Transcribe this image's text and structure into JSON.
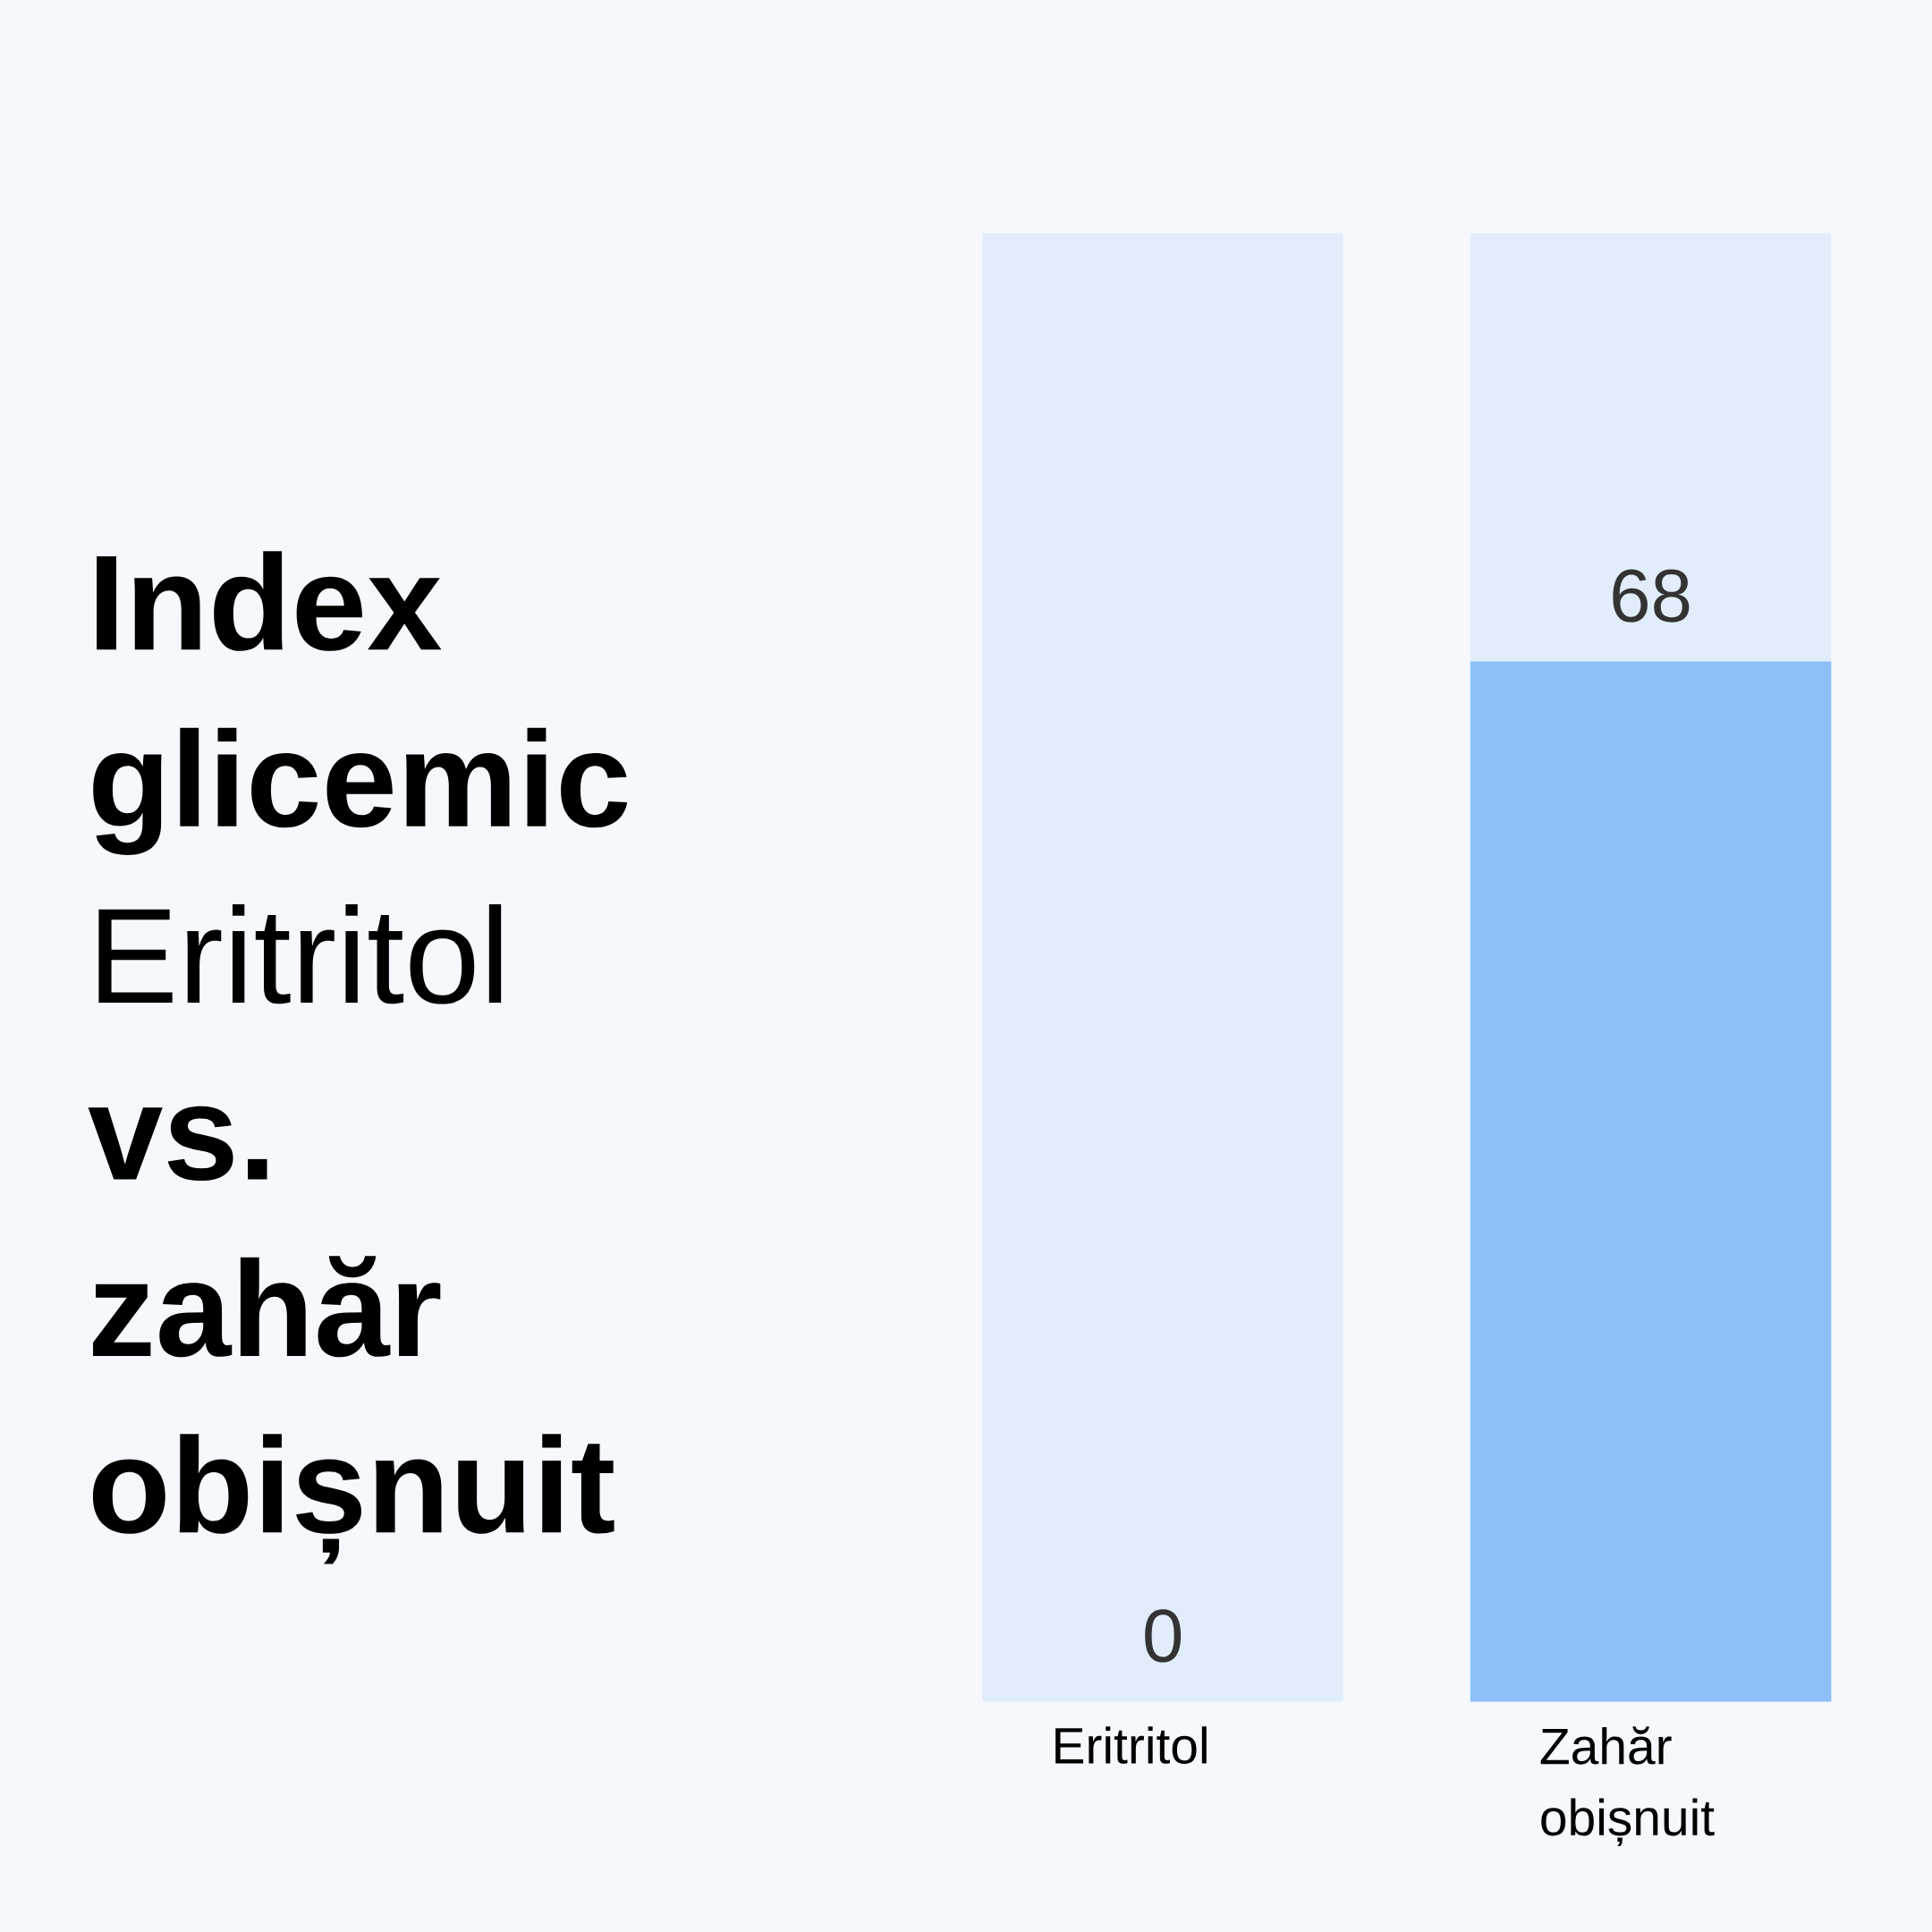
{
  "chart_data": {
    "type": "bar",
    "title": "Index glicemic",
    "subtitle": "Eritritol **vs. zahăr obișnuit**",
    "categories": [
      "Eritritol",
      "Zahăr obișnuit"
    ],
    "series": [
      {
        "color": "#8fbff8",
        "values": [
          0,
          68
        ],
        "value_labels": [
          "0",
          "68"
        ]
      }
    ],
    "bands": [
      {
        "axis": "y",
        "from": 0,
        "to": 96,
        "color": "#e1edfa"
      }
    ],
    "ylim": [
      0,
      96
    ],
    "tick_labels": "x"
  }
}
